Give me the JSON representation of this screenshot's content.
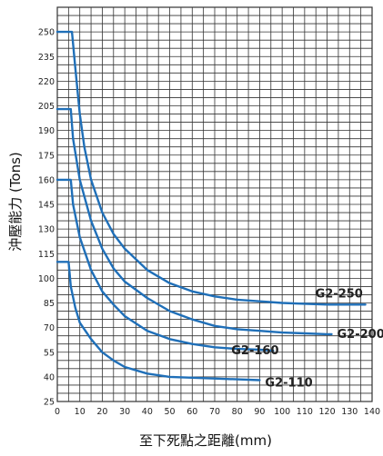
{
  "chart_data": {
    "type": "line",
    "xlabel": "至下死點之距離(mm)",
    "ylabel": "沖壓能力 (Tons)",
    "xlim": [
      0,
      140
    ],
    "ylim": [
      25,
      265
    ],
    "grid": true,
    "x_ticks": [
      0,
      10,
      20,
      30,
      40,
      50,
      60,
      70,
      80,
      90,
      100,
      110,
      120,
      130,
      140
    ],
    "y_ticks": [
      25,
      40,
      55,
      70,
      85,
      100,
      115,
      130,
      145,
      160,
      175,
      190,
      205,
      220,
      235,
      250
    ],
    "colors": {
      "series": "#1f6fb8",
      "grid": "#333333"
    },
    "series": [
      {
        "name": "G2-250",
        "x": [
          0,
          6.5,
          8,
          10,
          12,
          15,
          20,
          25,
          30,
          40,
          50,
          60,
          70,
          80,
          90,
          100,
          110,
          120,
          130,
          137
        ],
        "y": [
          250,
          250,
          228,
          200,
          180,
          160,
          140,
          127,
          118,
          105,
          97,
          92,
          89,
          87,
          86,
          85,
          84.5,
          84,
          84,
          84
        ]
      },
      {
        "name": "G2-200",
        "x": [
          0,
          6,
          7,
          10,
          15,
          20,
          25,
          30,
          40,
          50,
          60,
          70,
          80,
          90,
          100,
          110,
          120,
          122
        ],
        "y": [
          203,
          203,
          185,
          160,
          135,
          118,
          106,
          98,
          88,
          80,
          75,
          71,
          69,
          68,
          67,
          66.5,
          66,
          66
        ]
      },
      {
        "name": "G2-160",
        "x": [
          0,
          6,
          7,
          10,
          15,
          20,
          25,
          30,
          40,
          50,
          60,
          70,
          80,
          90,
          96
        ],
        "y": [
          160,
          160,
          145,
          125,
          105,
          92,
          84,
          77,
          68,
          63,
          60,
          58,
          57,
          56.5,
          56
        ]
      },
      {
        "name": "G2-110",
        "x": [
          0,
          5,
          6,
          8,
          10,
          15,
          20,
          25,
          30,
          40,
          50,
          60,
          70,
          80,
          90
        ],
        "y": [
          110,
          110,
          95,
          82,
          73,
          63,
          55,
          50,
          46,
          42,
          40,
          39.5,
          39,
          38.5,
          38
        ]
      }
    ]
  }
}
